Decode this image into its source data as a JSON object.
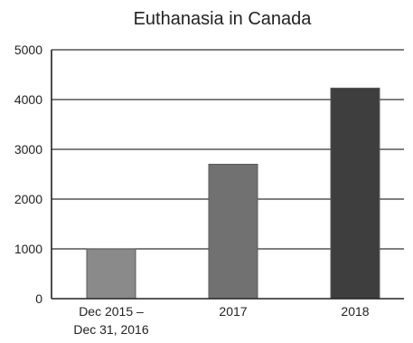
{
  "chart_data": {
    "type": "bar",
    "title": "Euthanasia in Canada",
    "xlabel": "",
    "ylabel": "",
    "categories": [
      [
        "Dec 2015 –",
        "Dec 31, 2016"
      ],
      [
        "2017"
      ],
      [
        "2018"
      ]
    ],
    "values": [
      1000,
      2700,
      4230
    ],
    "ylim": [
      0,
      5000
    ],
    "yticks": [
      0,
      1000,
      2000,
      3000,
      4000,
      5000
    ],
    "grid": true,
    "legend": "none",
    "bar_colors": [
      "#8a8a8a",
      "#717171",
      "#3e3e3e"
    ],
    "bar_edge_color": "#5a5a5a",
    "axis_color": "#222222",
    "grid_color": "#333333"
  }
}
